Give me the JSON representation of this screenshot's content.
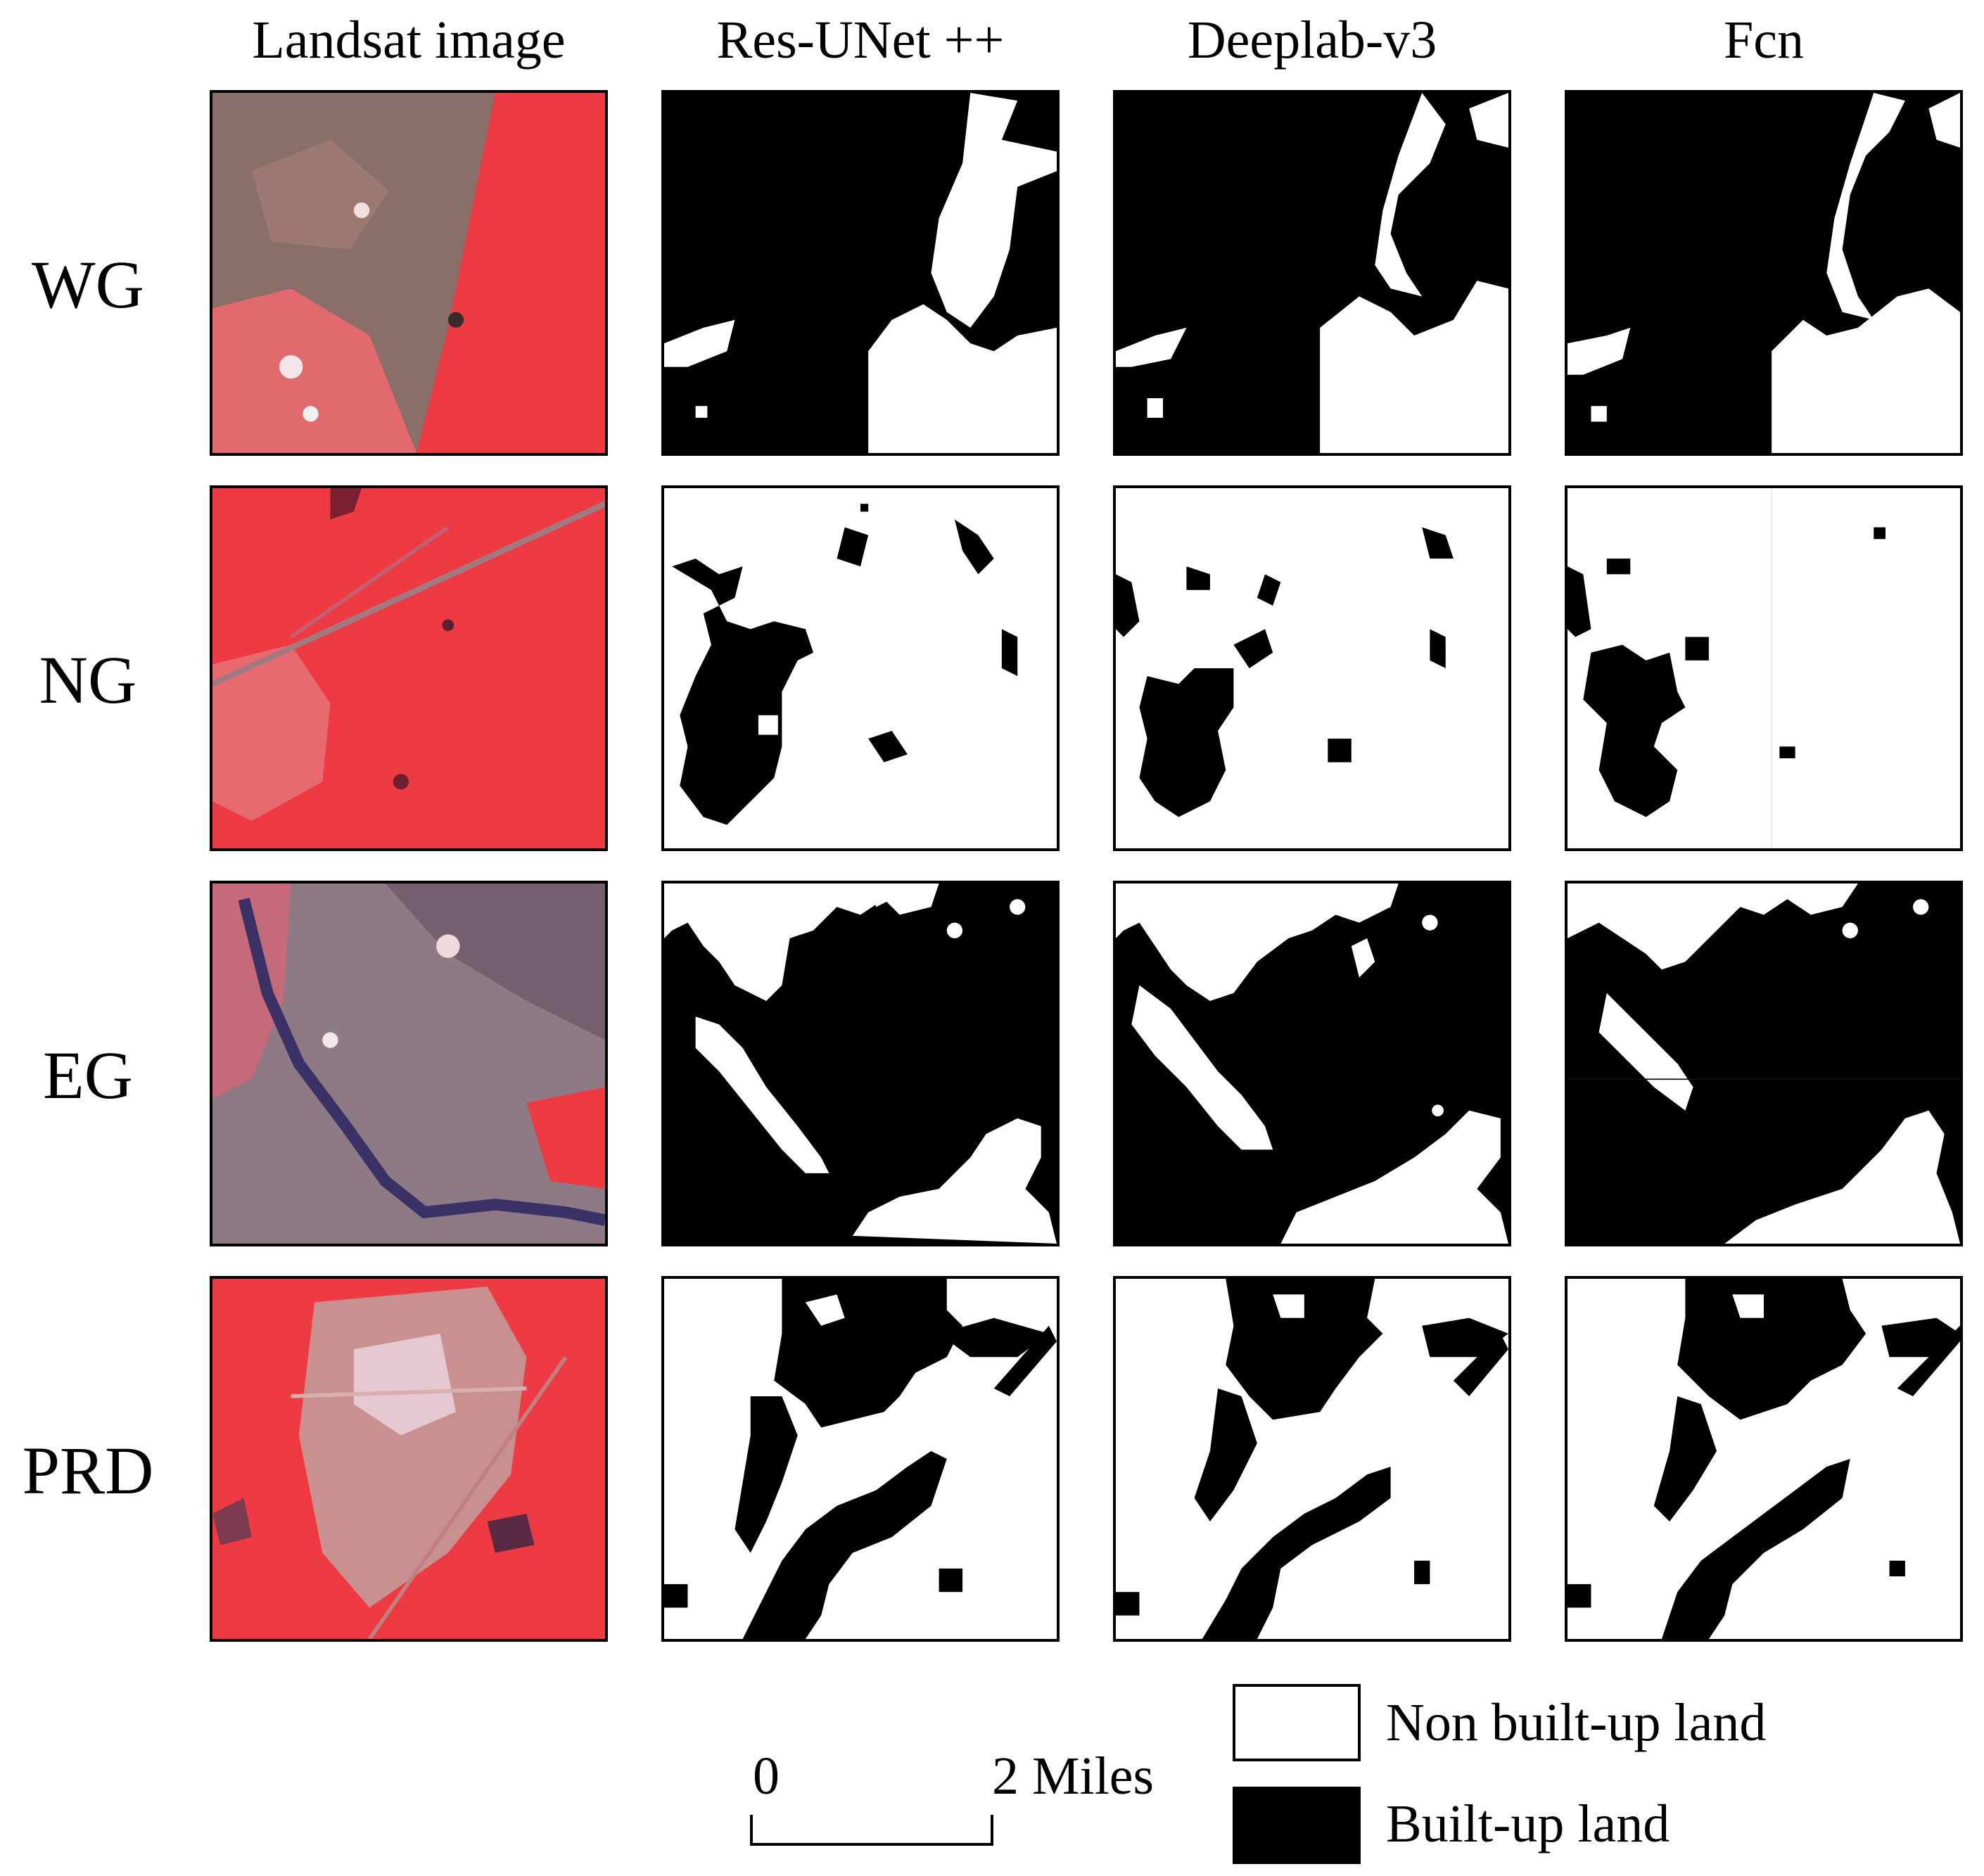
{
  "columns": [
    "Landsat image",
    "Res-UNet ++",
    "Deeplab-v3",
    "Fcn"
  ],
  "rows": [
    "WG",
    "NG",
    "EG",
    "PRD"
  ],
  "legend": {
    "items": [
      {
        "label": "Non built-up land",
        "color": "#ffffff"
      },
      {
        "label": "Built-up land",
        "color": "#000000"
      }
    ]
  },
  "scale_bar": {
    "start": "0",
    "end": "2 Miles"
  },
  "colors": {
    "vegetation": "#ee3a42",
    "built_up": "#000000",
    "non_built_up": "#ffffff"
  }
}
